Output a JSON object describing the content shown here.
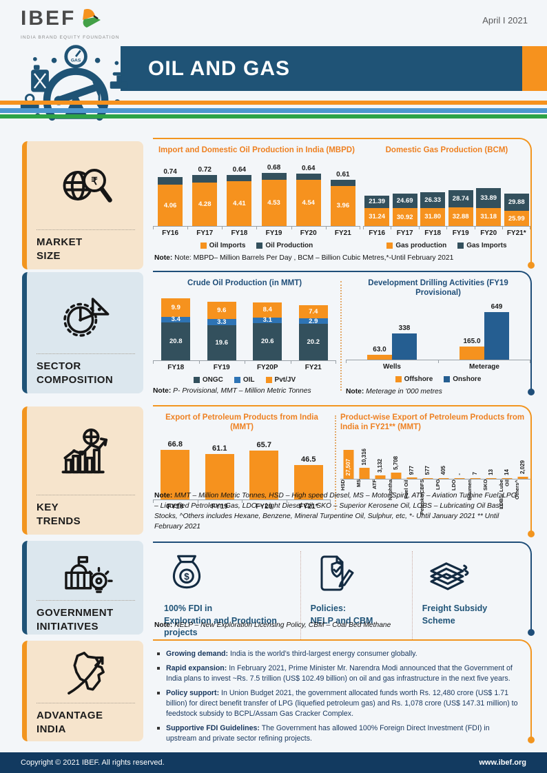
{
  "page": {
    "date": "April I 2021",
    "banner_title": "OIL AND GAS"
  },
  "logo": {
    "name": "IBEF",
    "tagline": "INDIA BRAND EQUITY FOUNDATION",
    "bird_icon": "ibef-bird-icon"
  },
  "illustration": {
    "name": "oil-pumpjack-illustration",
    "gauge_label": "GAS"
  },
  "colors": {
    "orange": "#F6921E",
    "slate": "#33505D",
    "blue": "#2E74B5",
    "navy_bar": "#255E91",
    "banner_navy": "#1F5376",
    "title_orange": "#EE8122",
    "title_navy": "#1F4E79",
    "stripe_blue": "#4D97CF",
    "stripe_green": "#2EA347",
    "footer_navy": "#123A60",
    "card_tan": "#F6E4CC",
    "card_blue": "#DCE7EE"
  },
  "sidebar": {
    "items": [
      {
        "id": "market-size",
        "label": "MARKET\nSIZE",
        "icon": "globe-magnifier-icon",
        "theme": "tan"
      },
      {
        "id": "sector-composition",
        "label": "SECTOR\nCOMPOSITION",
        "icon": "gear-pie-icon",
        "theme": "blu"
      },
      {
        "id": "key-trends",
        "label": "KEY\nTRENDS",
        "icon": "growth-chart-icon",
        "theme": "tan"
      },
      {
        "id": "government-initiatives",
        "label": "GOVERNMENT\nINITIATIVES",
        "icon": "government-building-icon",
        "theme": "blu"
      },
      {
        "id": "advantage-india",
        "label": "ADVANTAGE\nINDIA",
        "icon": "india-map-icon",
        "theme": "tan"
      }
    ]
  },
  "chart_data": [
    {
      "id": "oil-import-production",
      "type": "bar",
      "variant": "stacked",
      "title": "Import and Domestic Oil Production in India (MBPD)",
      "categories": [
        "FY16",
        "FY17",
        "FY18",
        "FY19",
        "FY20",
        "FY21"
      ],
      "series": [
        {
          "name": "Oil Imports",
          "color": "#F6921E",
          "label_pos": "inside",
          "values": [
            4.06,
            4.28,
            4.41,
            4.53,
            4.54,
            3.96
          ],
          "labels": [
            "4.06",
            "4.28",
            "4.41",
            "4.53",
            "4.54",
            "3.96"
          ]
        },
        {
          "name": "Oil Production",
          "color": "#33505D",
          "label_pos": "above",
          "values": [
            0.74,
            0.72,
            0.64,
            0.68,
            0.64,
            0.61
          ],
          "labels": [
            "0.74",
            "0.72",
            "0.64",
            "0.68",
            "0.64",
            "0.61"
          ]
        }
      ],
      "legend_position": "bottom",
      "grid": false
    },
    {
      "id": "domestic-gas-production",
      "type": "bar",
      "variant": "stacked",
      "title": "Domestic Gas Production (BCM)",
      "categories": [
        "FY16",
        "FY17",
        "FY18",
        "FY19",
        "FY20",
        "FY21*"
      ],
      "series": [
        {
          "name": "Gas production",
          "color": "#F6921E",
          "label_pos": "inside",
          "values": [
            31.24,
            30.92,
            31.8,
            32.88,
            31.18,
            25.99
          ],
          "labels": [
            "31.24",
            "30.92",
            "31.80",
            "32.88",
            "31.18",
            "25.99"
          ]
        },
        {
          "name": "Gas Imports",
          "color": "#33505D",
          "label_pos": "inside",
          "values": [
            21.39,
            24.69,
            26.33,
            28.74,
            33.89,
            29.88
          ],
          "labels": [
            "21.39",
            "24.69",
            "26.33",
            "28.74",
            "33.89",
            "29.88"
          ]
        }
      ],
      "legend_position": "bottom",
      "grid": false
    },
    {
      "id": "crude-oil-production",
      "type": "bar",
      "variant": "stacked",
      "title": "Crude Oil Production (in MMT)",
      "categories": [
        "FY18",
        "FY19",
        "FY20P",
        "FY21"
      ],
      "series": [
        {
          "name": "ONGC",
          "color": "#33505D",
          "label_pos": "inside",
          "values": [
            20.8,
            19.6,
            20.6,
            20.2
          ],
          "labels": [
            "20.8",
            "19.6",
            "20.6",
            "20.2"
          ]
        },
        {
          "name": "OIL",
          "color": "#2E74B5",
          "label_pos": "inside",
          "values": [
            3.4,
            3.3,
            3.1,
            2.9
          ],
          "labels": [
            "3.4",
            "3.3",
            "3.1",
            "2.9"
          ]
        },
        {
          "name": "Pvt/JV",
          "color": "#F6921E",
          "label_pos": "inside",
          "values": [
            9.9,
            9.6,
            8.4,
            7.4
          ],
          "labels": [
            "9.9",
            "9.6",
            "8.4",
            "7.4"
          ]
        }
      ],
      "legend_position": "bottom",
      "grid": false
    },
    {
      "id": "development-drilling",
      "type": "bar",
      "variant": "grouped",
      "title": "Development Drilling Activities (FY19 Provisional)",
      "categories": [
        "Wells",
        "Meterage"
      ],
      "series": [
        {
          "name": "Offshore",
          "color": "#F6921E",
          "values": [
            63.0,
            165.0
          ],
          "labels": [
            "63.0",
            "165.0"
          ]
        },
        {
          "name": "Onshore",
          "color": "#255E91",
          "values": [
            338,
            649
          ],
          "labels": [
            "338",
            "649"
          ]
        }
      ],
      "legend_position": "bottom",
      "grid": false
    },
    {
      "id": "petroleum-exports",
      "type": "bar",
      "variant": "simple",
      "title": "Export of Petroleum Products from India (MMT)",
      "categories": [
        "FY18",
        "FY19",
        "FY20",
        "FY21*"
      ],
      "series": [
        {
          "name": "Exports",
          "color": "#F6921E",
          "values": [
            66.8,
            61.1,
            65.7,
            46.5
          ],
          "labels": [
            "66.8",
            "61.1",
            "65.7",
            "46.5"
          ]
        }
      ],
      "grid": false
    },
    {
      "id": "product-wise-exports",
      "type": "bar",
      "variant": "simple-rotated",
      "title": "Product-wise Export of Petroleum Products from India in FY21** (MMT)",
      "categories": [
        "HSD",
        "MS",
        "ATF",
        "Naphtha",
        "Fuel Oil",
        "Petcoke/CBFS",
        "LPG",
        "LDO",
        "Bitumen",
        "SKO",
        "LOBS/ Lube Oil",
        "Others^"
      ],
      "series": [
        {
          "name": "Exports",
          "color": "#F6921E",
          "values": [
            27507,
            10316,
            3132,
            5708,
            977,
            577,
            405,
            0,
            7,
            13,
            14,
            2029
          ],
          "labels": [
            "27,507",
            "10,316",
            "3,132",
            "5,708",
            "977",
            "577",
            "405",
            "-",
            "7",
            "13",
            "14",
            "2,029"
          ]
        }
      ],
      "grid": false
    }
  ],
  "notes": {
    "market": {
      "label": "Note:",
      "text": " Note: MBPD– Million Barrels Per Day , BCM – Billion Cubic Metres,*-Until February 2021"
    },
    "crude": {
      "label": "Note:",
      "text": " P- Provisional, MMT – Million Metric Tonnes"
    },
    "drilling": {
      "label": "Note:",
      "text": " Meterage in  '000 metres"
    },
    "exports": {
      "label": "Note:",
      "text": " MMT – Million Metric Tonnes, HSD – High speed Diesel, MS – Motor Spirit, ATF – Aviation Turbine Fuel, LPG – Liquefied Petroleum Gas, LDO – Light Diesel Oil, SKO – Superior Kerosene Oil, LOBS – Lubricating Oil Base Stocks, ^Others includes Hexane, Benzene, Mineral Turpentine Oil, Sulphur, etc, *- Until January 2021 ** Until February 2021"
    },
    "gov": {
      "label": "Note:",
      "text": " NELP – New Exploration Licensing Policy, CBM – Coal Bed Methane"
    }
  },
  "gov": {
    "items": [
      {
        "id": "fdi",
        "icon": "money-bag-icon",
        "label": "100% FDI in\nExploration and Production\nprojects"
      },
      {
        "id": "policies",
        "icon": "policy-document-icon",
        "label": "Policies:\nNELP and CBM"
      },
      {
        "id": "freight",
        "icon": "money-stack-icon",
        "label": "Freight Subsidy\nScheme"
      }
    ]
  },
  "advantage": {
    "bullets": [
      {
        "lead": "Growing demand:",
        "text": " India is the world’s third-largest energy consumer globally."
      },
      {
        "lead": "Rapid expansion:",
        "text": " In February 2021, Prime Minister Mr. Narendra Modi announced that the Government of India plans to invest ~Rs. 7.5 trillion (US$ 102.49 billion) on oil and gas infrastructure in the next five years."
      },
      {
        "lead": "Policy support:",
        "text": " In Union Budget 2021, the government allocated funds worth Rs. 12,480 crore (US$ 1.71 billion) for direct benefit transfer of LPG (liquefied petroleum gas) and Rs. 1,078 crore (US$ 147.31 million) to feedstock subsidy to BCPL/Assam Gas Cracker Complex."
      },
      {
        "lead": "Supportive FDI Guidelines:",
        "text": " The Government has allowed 100% Foreign Direct Investment (FDI) in upstream and private sector refining projects."
      }
    ]
  },
  "footer": {
    "copyright": "Copyright © 2021 IBEF. All rights reserved.",
    "website": "www.ibef.org"
  }
}
